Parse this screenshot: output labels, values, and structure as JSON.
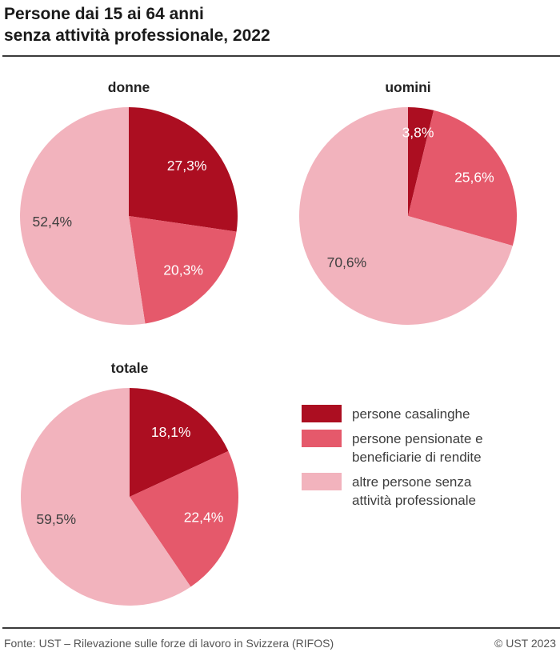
{
  "header": {
    "title_line1": "Persone dai 15 ai 64 anni",
    "title_line2": "senza attività professionale, 2022"
  },
  "footer": {
    "source": "Fonte: UST – Rilevazione sulle forze di lavoro in Svizzera (RIFOS)",
    "copyright": "© UST 2023"
  },
  "chart_data": {
    "type": "pie",
    "unit": "%",
    "start_angle": "12-oclock",
    "direction": "clockwise",
    "legend_position": "bottom-right",
    "categories": [
      {
        "name": "persone casalinghe",
        "color": "#ac0e21",
        "value_label_color": "#ffffff",
        "legend_lines": [
          "persone casalinghe"
        ]
      },
      {
        "name": "persone pensionate e beneficiarie di rendite",
        "color": "#e5596b",
        "value_label_color": "#ffffff",
        "legend_lines": [
          "persone pensionate e",
          "beneficiarie di rendite"
        ]
      },
      {
        "name": "altre persone senza attività professionale",
        "color": "#f2b3bd",
        "value_label_color": "#404040",
        "legend_lines": [
          "altre persone senza",
          "attività professionale"
        ]
      }
    ],
    "charts": [
      {
        "title": "donne",
        "values": [
          27.3,
          20.3,
          52.4
        ],
        "value_labels": [
          "27,3%",
          "20,3%",
          "52,4%"
        ]
      },
      {
        "title": "uomini",
        "values": [
          3.8,
          25.6,
          70.6
        ],
        "value_labels": [
          "3,8%",
          "25,6%",
          "70,6%"
        ]
      },
      {
        "title": "totale",
        "values": [
          18.1,
          22.4,
          59.5
        ],
        "value_labels": [
          "18,1%",
          "22,4%",
          "59,5%"
        ]
      }
    ]
  }
}
